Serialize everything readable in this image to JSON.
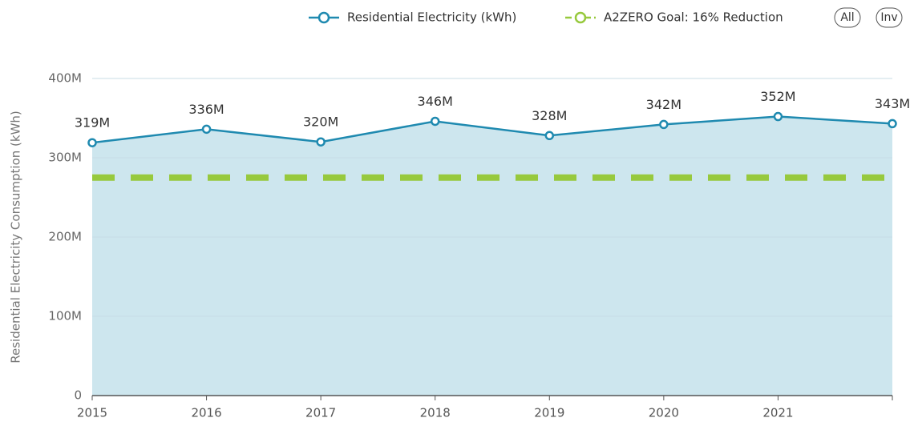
{
  "chart_data": {
    "type": "line",
    "y_label": "Residential Electricity Consumption (kWh)",
    "categories": [
      "2015",
      "2016",
      "2017",
      "2018",
      "2019",
      "2020",
      "2021",
      null
    ],
    "series": [
      {
        "name": "Residential Electricity (kWh)",
        "color": "#1f8ab0",
        "area_color": "#cde6ee",
        "values": [
          319000000,
          336000000,
          320000000,
          346000000,
          328000000,
          342000000,
          352000000,
          343000000
        ],
        "value_labels": [
          "319M",
          "336M",
          "320M",
          "346M",
          "328M",
          "342M",
          "352M",
          "343M"
        ]
      },
      {
        "name": "A2ZERO Goal: 16% Reduction",
        "color": "#97c93d",
        "dashed": true,
        "values": [
          275000000,
          275000000,
          275000000,
          275000000,
          275000000,
          275000000,
          275000000,
          275000000
        ]
      }
    ],
    "ylim": [
      0,
      400000000
    ],
    "yticks": [
      0,
      {
        "value": 100000000,
        "label": "100M"
      },
      {
        "value": 200000000,
        "label": "200M"
      },
      {
        "value": 300000000,
        "label": "300M"
      },
      {
        "value": 400000000,
        "label": "400M"
      }
    ],
    "grid": true,
    "legend": "top-right",
    "buttons": [
      "All",
      "Inv"
    ]
  }
}
